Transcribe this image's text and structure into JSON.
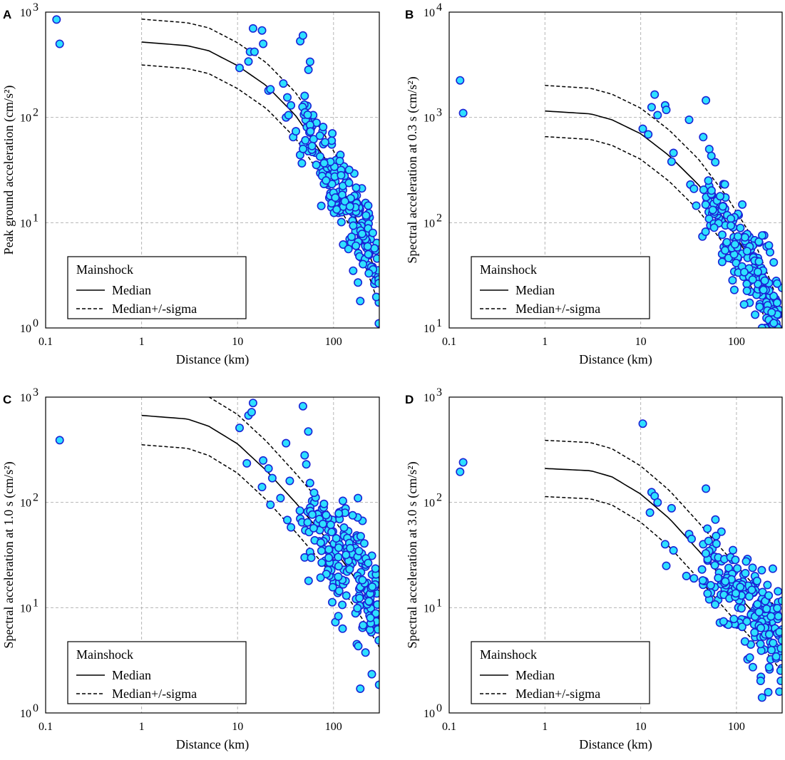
{
  "figure": {
    "x_axis_label": "Distance (km)",
    "legend": {
      "title": "Mainshock",
      "median_label": "Median",
      "sigma_label": "Median+/-sigma",
      "placement": "bottom-left"
    },
    "colors": {
      "marker_fill": "#2ee0ff",
      "marker_edge": "#1a24d6",
      "grid": "#b5b5b5",
      "line": "#000000"
    }
  },
  "chart_data": [
    {
      "letter": "A",
      "type": "scatter",
      "title": "",
      "xlabel": "Distance (km)",
      "ylabel": "Peak ground acceleration (cm/s²)",
      "xscale": "log",
      "yscale": "log",
      "xlim": [
        0.1,
        300
      ],
      "ylim": [
        1,
        1000
      ],
      "x_ticks": [
        "0.1",
        "1",
        "10",
        "100"
      ],
      "y_ticks": [
        {
          "base": "10",
          "exp": "0"
        },
        {
          "base": "10",
          "exp": "1"
        },
        {
          "base": "10",
          "exp": "2"
        },
        {
          "base": "10",
          "exp": "3"
        }
      ],
      "median": {
        "x": [
          1,
          3,
          5,
          10,
          20,
          40,
          80,
          150,
          220,
          300
        ],
        "y": [
          520,
          480,
          430,
          310,
          200,
          105,
          42,
          15,
          6,
          2.7
        ]
      },
      "sigma_factor": 1.65,
      "points_explicit": [
        [
          0.13,
          850
        ],
        [
          0.14,
          500
        ],
        [
          10.5,
          295
        ],
        [
          13,
          340
        ],
        [
          13.5,
          420
        ],
        [
          14.5,
          700
        ],
        [
          15,
          420
        ],
        [
          18,
          670
        ],
        [
          18.5,
          500
        ],
        [
          21,
          180
        ],
        [
          22,
          185
        ],
        [
          30,
          210
        ],
        [
          32,
          100
        ],
        [
          33,
          155
        ],
        [
          34,
          105
        ],
        [
          36,
          130
        ],
        [
          38,
          65
        ],
        [
          45,
          530
        ],
        [
          48,
          600
        ],
        [
          50,
          160
        ],
        [
          95,
          14
        ],
        [
          190,
          1.8
        ],
        [
          180,
          2.7
        ],
        [
          160,
          3.5
        ]
      ],
      "cloud": {
        "x_min": 40,
        "x_max": 300,
        "count": 200,
        "spread": 0.2,
        "seed": 11
      }
    },
    {
      "letter": "B",
      "type": "scatter",
      "title": "",
      "xlabel": "Distance (km)",
      "ylabel": "Spectral acceleration at 0.3 s (cm/s²)",
      "xscale": "log",
      "yscale": "log",
      "xlim": [
        0.1,
        300
      ],
      "ylim": [
        10,
        10000
      ],
      "x_ticks": [
        "0.1",
        "1",
        "10",
        "100"
      ],
      "y_ticks": [
        {
          "base": "10",
          "exp": "1"
        },
        {
          "base": "10",
          "exp": "2"
        },
        {
          "base": "10",
          "exp": "3"
        },
        {
          "base": "10",
          "exp": "4"
        }
      ],
      "median": {
        "x": [
          1,
          3,
          5,
          10,
          20,
          40,
          80,
          150,
          220,
          300
        ],
        "y": [
          1150,
          1080,
          950,
          700,
          430,
          230,
          100,
          40,
          17,
          8
        ]
      },
      "sigma_factor": 1.75,
      "points_explicit": [
        [
          0.13,
          2250
        ],
        [
          0.14,
          1100
        ],
        [
          10.5,
          780
        ],
        [
          12,
          690
        ],
        [
          13,
          1250
        ],
        [
          14,
          1650
        ],
        [
          15,
          1050
        ],
        [
          18,
          1300
        ],
        [
          18.5,
          1180
        ],
        [
          21,
          380
        ],
        [
          22,
          460
        ],
        [
          32,
          950
        ],
        [
          33,
          230
        ],
        [
          36,
          210
        ],
        [
          38,
          145
        ],
        [
          45,
          650
        ],
        [
          48,
          1450
        ],
        [
          52,
          500
        ],
        [
          95,
          23
        ],
        [
          200,
          10
        ],
        [
          185,
          10
        ],
        [
          260,
          28
        ]
      ],
      "cloud": {
        "x_min": 40,
        "x_max": 300,
        "count": 210,
        "spread": 0.21,
        "seed": 23
      }
    },
    {
      "letter": "C",
      "type": "scatter",
      "title": "",
      "xlabel": "Distance (km)",
      "ylabel": "Spectral acceleration at 1.0 s (cm/s²)",
      "xscale": "log",
      "yscale": "log",
      "xlim": [
        0.1,
        300
      ],
      "ylim": [
        1,
        1000
      ],
      "x_ticks": [
        "0.1",
        "1",
        "10",
        "100"
      ],
      "y_ticks": [
        {
          "base": "10",
          "exp": "0"
        },
        {
          "base": "10",
          "exp": "1"
        },
        {
          "base": "10",
          "exp": "2"
        },
        {
          "base": "10",
          "exp": "3"
        }
      ],
      "median": {
        "x": [
          1,
          3,
          5,
          10,
          20,
          40,
          80,
          150,
          220,
          300
        ],
        "y": [
          670,
          620,
          530,
          360,
          200,
          100,
          48,
          22,
          13,
          8
        ]
      },
      "sigma_factor": 1.9,
      "points_explicit": [
        [
          0.14,
          390
        ],
        [
          10.5,
          510
        ],
        [
          12.5,
          235
        ],
        [
          13,
          670
        ],
        [
          14,
          720
        ],
        [
          14.5,
          880
        ],
        [
          18,
          140
        ],
        [
          18.5,
          250
        ],
        [
          21,
          210
        ],
        [
          22,
          95
        ],
        [
          23,
          170
        ],
        [
          28,
          110
        ],
        [
          32,
          365
        ],
        [
          33,
          68
        ],
        [
          35,
          160
        ],
        [
          36,
          58
        ],
        [
          45,
          70
        ],
        [
          48,
          820
        ],
        [
          50,
          280
        ],
        [
          52,
          230
        ],
        [
          50,
          30
        ],
        [
          55,
          18
        ],
        [
          190,
          1.7
        ],
        [
          175,
          4.5
        ],
        [
          180,
          110
        ]
      ],
      "cloud": {
        "x_min": 40,
        "x_max": 300,
        "count": 200,
        "spread": 0.27,
        "seed": 37
      }
    },
    {
      "letter": "D",
      "type": "scatter",
      "title": "",
      "xlabel": "Distance (km)",
      "ylabel": "Spectral acceleration at 3.0 s (cm/s²)",
      "xscale": "log",
      "yscale": "log",
      "xlim": [
        0.1,
        300
      ],
      "ylim": [
        1,
        1000
      ],
      "x_ticks": [
        "0.1",
        "1",
        "10",
        "100"
      ],
      "y_ticks": [
        {
          "base": "10",
          "exp": "0"
        },
        {
          "base": "10",
          "exp": "1"
        },
        {
          "base": "10",
          "exp": "2"
        },
        {
          "base": "10",
          "exp": "3"
        }
      ],
      "median": {
        "x": [
          1,
          3,
          5,
          10,
          20,
          40,
          80,
          150,
          220,
          300
        ],
        "y": [
          210,
          200,
          175,
          120,
          70,
          35,
          17,
          9,
          6.5,
          4.5
        ]
      },
      "sigma_factor": 1.85,
      "points_explicit": [
        [
          0.13,
          195
        ],
        [
          0.14,
          240
        ],
        [
          10.5,
          560
        ],
        [
          12.5,
          80
        ],
        [
          13,
          125
        ],
        [
          14,
          115
        ],
        [
          15,
          100
        ],
        [
          18,
          40
        ],
        [
          18.5,
          25
        ],
        [
          21,
          88
        ],
        [
          22,
          35
        ],
        [
          30,
          20
        ],
        [
          32,
          50
        ],
        [
          34,
          45
        ],
        [
          36,
          19
        ],
        [
          45,
          40
        ],
        [
          48,
          135
        ],
        [
          50,
          28
        ],
        [
          52,
          12
        ],
        [
          185,
          1.4
        ],
        [
          180,
          2.2
        ]
      ],
      "cloud": {
        "x_min": 40,
        "x_max": 300,
        "count": 220,
        "spread": 0.22,
        "seed": 53
      }
    }
  ]
}
